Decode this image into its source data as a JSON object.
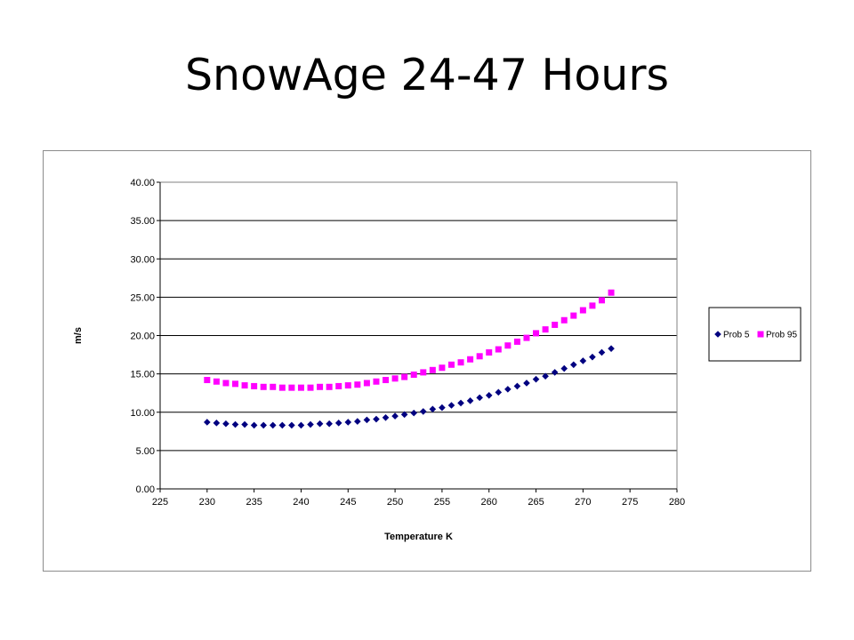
{
  "slide": {
    "title": "SnowAge 24-47 Hours"
  },
  "chart_data": {
    "type": "scatter",
    "xlabel": "Temperature K",
    "ylabel": "m/s",
    "xlim": [
      225,
      280
    ],
    "ylim": [
      0,
      40
    ],
    "x_ticks": [
      "225",
      "230",
      "235",
      "240",
      "245",
      "250",
      "255",
      "260",
      "265",
      "270",
      "275",
      "280"
    ],
    "y_ticks": [
      "0.00",
      "5.00",
      "10.00",
      "15.00",
      "20.00",
      "25.00",
      "30.00",
      "35.00",
      "40.00"
    ],
    "grid": "horizontal",
    "legend": "right",
    "series": [
      {
        "name": "Prob 5",
        "color": "#000080",
        "marker": "diamond",
        "x": [
          230,
          231,
          232,
          233,
          234,
          235,
          236,
          237,
          238,
          239,
          240,
          241,
          242,
          243,
          244,
          245,
          246,
          247,
          248,
          249,
          250,
          251,
          252,
          253,
          254,
          255,
          256,
          257,
          258,
          259,
          260,
          261,
          262,
          263,
          264,
          265,
          266,
          267,
          268,
          269,
          270,
          271,
          272,
          273
        ],
        "y": [
          8.7,
          8.6,
          8.5,
          8.4,
          8.4,
          8.3,
          8.3,
          8.3,
          8.3,
          8.3,
          8.3,
          8.4,
          8.5,
          8.5,
          8.6,
          8.7,
          8.8,
          9.0,
          9.1,
          9.3,
          9.5,
          9.7,
          9.9,
          10.1,
          10.4,
          10.6,
          10.9,
          11.2,
          11.5,
          11.9,
          12.2,
          12.6,
          13.0,
          13.4,
          13.8,
          14.3,
          14.7,
          15.2,
          15.7,
          16.2,
          16.7,
          17.2,
          17.8,
          18.3
        ]
      },
      {
        "name": "Prob 95",
        "color": "#FF00FF",
        "marker": "square",
        "x": [
          230,
          231,
          232,
          233,
          234,
          235,
          236,
          237,
          238,
          239,
          240,
          241,
          242,
          243,
          244,
          245,
          246,
          247,
          248,
          249,
          250,
          251,
          252,
          253,
          254,
          255,
          256,
          257,
          258,
          259,
          260,
          261,
          262,
          263,
          264,
          265,
          266,
          267,
          268,
          269,
          270,
          271,
          272,
          273
        ],
        "y": [
          14.2,
          14.0,
          13.8,
          13.7,
          13.5,
          13.4,
          13.3,
          13.3,
          13.2,
          13.2,
          13.2,
          13.2,
          13.3,
          13.3,
          13.4,
          13.5,
          13.6,
          13.8,
          14.0,
          14.2,
          14.4,
          14.6,
          14.9,
          15.2,
          15.5,
          15.8,
          16.2,
          16.5,
          16.9,
          17.3,
          17.8,
          18.2,
          18.7,
          19.2,
          19.7,
          20.3,
          20.8,
          21.4,
          22.0,
          22.6,
          23.3,
          23.9,
          24.6,
          25.6
        ]
      }
    ]
  }
}
